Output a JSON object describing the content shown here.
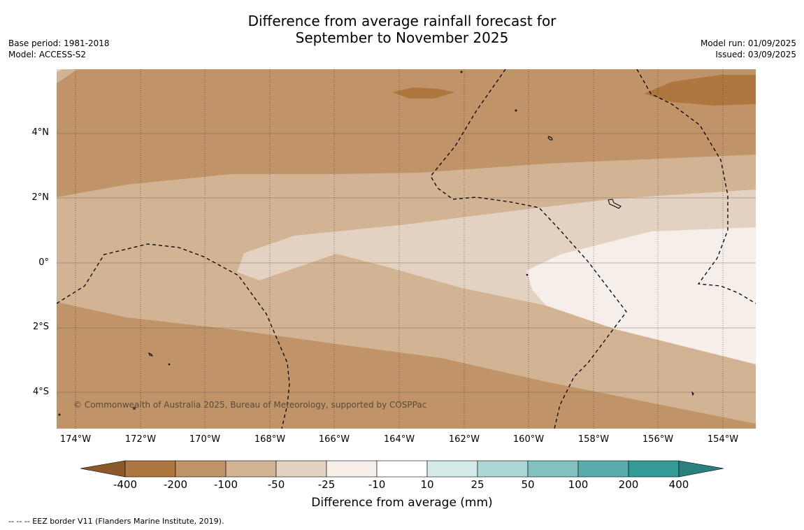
{
  "title_line1": "Difference from average rainfall forecast for",
  "title_line2": "September to November 2025",
  "meta_left": {
    "base_period": "Base period: 1981-2018",
    "model": "Model: ACCESS-S2"
  },
  "meta_right": {
    "model_run": "Model run: 01/09/2025",
    "issued": "Issued: 03/09/2025"
  },
  "lat_labels": [
    "4°N",
    "2°N",
    "0°",
    "2°S",
    "4°S"
  ],
  "lon_labels": [
    "174°W",
    "172°W",
    "170°W",
    "168°W",
    "166°W",
    "164°W",
    "162°W",
    "160°W",
    "158°W",
    "156°W",
    "154°W"
  ],
  "copyright": "© Commonwealth of Australia 2025, Bureau of Meteorology, supported by COSPPac",
  "colorbar": {
    "ticks": [
      "-400",
      "-200",
      "-100",
      "-50",
      "-25",
      "-10",
      "10",
      "25",
      "50",
      "100",
      "200",
      "400"
    ],
    "colors": [
      "#8c5a2a",
      "#ae773f",
      "#c09468",
      "#d2b393",
      "#e3d1c1",
      "#f5eee9",
      "#ffffff",
      "#d5ebea",
      "#acd7d7",
      "#82c1bf",
      "#5aadab",
      "#339a98",
      "#2a807d"
    ],
    "title": "Difference from average (mm)"
  },
  "footer": "-- -- -- EEZ border V11 (Flanders Marine Institute, 2019)."
}
